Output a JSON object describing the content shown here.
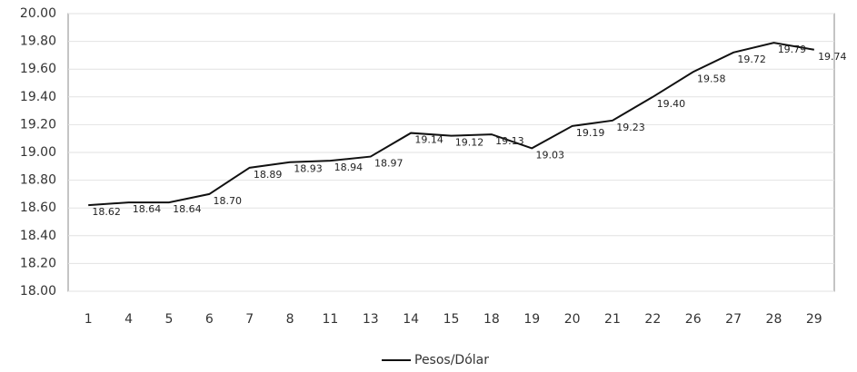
{
  "chart_data": {
    "type": "line",
    "categories": [
      "1",
      "4",
      "5",
      "6",
      "7",
      "8",
      "11",
      "13",
      "14",
      "15",
      "18",
      "19",
      "20",
      "21",
      "22",
      "26",
      "27",
      "28",
      "29"
    ],
    "series": [
      {
        "name": "Pesos/Dólar",
        "color": "#111111",
        "values": [
          18.62,
          18.64,
          18.64,
          18.7,
          18.89,
          18.93,
          18.94,
          18.97,
          19.14,
          19.12,
          19.13,
          19.03,
          19.19,
          19.23,
          19.4,
          19.58,
          19.72,
          19.79,
          19.74
        ],
        "value_labels": [
          "18.62",
          "18.64",
          "18.64",
          "18.70",
          "18.89",
          "18.93",
          "18.94",
          "18.97",
          "19.14",
          "19.12",
          "19.13",
          "19.03",
          "19.19",
          "19.23",
          "19.40",
          "19.58",
          "19.72",
          "19.79",
          "19.74"
        ]
      }
    ],
    "ylim": [
      18.0,
      20.0
    ],
    "yticks": [
      {
        "value": 18.0,
        "label": "18.00"
      },
      {
        "value": 18.2,
        "label": "18.20"
      },
      {
        "value": 18.4,
        "label": "18.40"
      },
      {
        "value": 18.6,
        "label": "18.60"
      },
      {
        "value": 18.8,
        "label": "18.80"
      },
      {
        "value": 19.0,
        "label": "19.00"
      },
      {
        "value": 19.2,
        "label": "19.20"
      },
      {
        "value": 19.4,
        "label": "19.40"
      },
      {
        "value": 19.6,
        "label": "19.60"
      },
      {
        "value": 19.8,
        "label": "19.80"
      },
      {
        "value": 20.0,
        "label": "20.00"
      }
    ],
    "grid": true,
    "legend": "bottom"
  }
}
